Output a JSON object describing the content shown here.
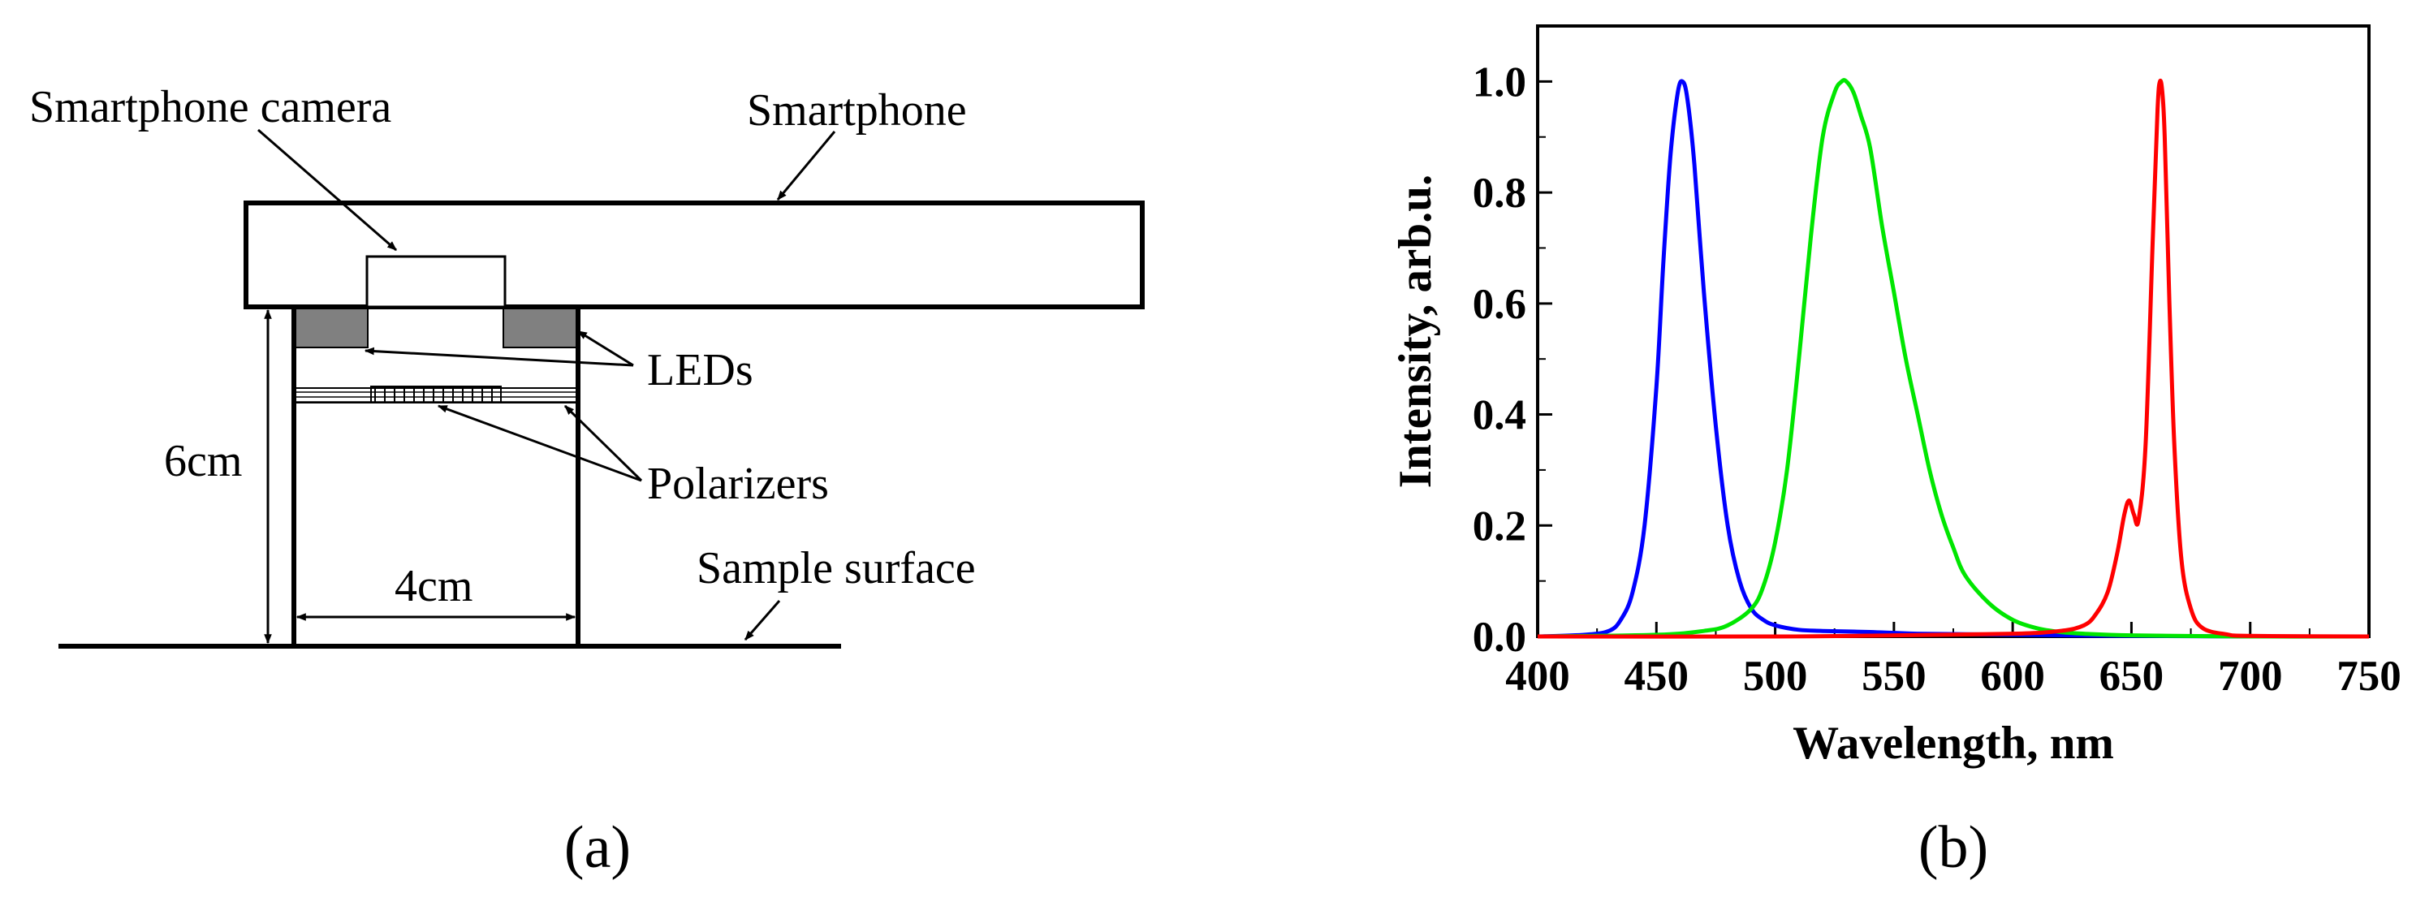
{
  "panel_a": {
    "labels": {
      "smartphone_camera": "Smartphone camera",
      "smartphone": "Smartphone",
      "leds": "LEDs",
      "polarizers": "Polarizers",
      "six_cm": "6cm",
      "four_cm": "4cm",
      "sample_surface": "Sample surface"
    },
    "caption": "(a)",
    "colors": {
      "led": "#808080",
      "line": "#000000"
    }
  },
  "panel_b": {
    "caption": "(b)"
  },
  "chart_data": {
    "type": "line",
    "xlabel": "Wavelength, nm",
    "ylabel": "Intensity, arb.u.",
    "xlim": [
      400,
      750
    ],
    "ylim": [
      0.0,
      1.1
    ],
    "xticks": [
      400,
      450,
      500,
      550,
      600,
      650,
      700,
      750
    ],
    "xtick_labels": [
      "400",
      "450",
      "500",
      "550",
      "600",
      "650",
      "700",
      "750"
    ],
    "yticks": [
      0.0,
      0.2,
      0.4,
      0.6,
      0.8,
      1.0
    ],
    "ytick_labels": [
      "0.0",
      "0.2",
      "0.4",
      "0.6",
      "0.8",
      "1.0"
    ],
    "grid": false,
    "series": [
      {
        "color": "#0000ff",
        "x": [
          400,
          420,
          430,
          435,
          440,
          445,
          450,
          453,
          456,
          459,
          461,
          463,
          466,
          470,
          475,
          480,
          485,
          490,
          495,
          500,
          510,
          520,
          540,
          560,
          600,
          650,
          700,
          750
        ],
        "y": [
          0.0,
          0.003,
          0.01,
          0.03,
          0.08,
          0.2,
          0.45,
          0.68,
          0.87,
          0.98,
          1.0,
          0.97,
          0.85,
          0.62,
          0.38,
          0.2,
          0.1,
          0.05,
          0.03,
          0.02,
          0.012,
          0.01,
          0.008,
          0.005,
          0.003,
          0.001,
          0.0,
          0.0
        ]
      },
      {
        "color": "#00e600",
        "x": [
          400,
          450,
          470,
          480,
          490,
          495,
          500,
          505,
          510,
          515,
          520,
          525,
          528,
          530,
          533,
          536,
          540,
          545,
          550,
          555,
          560,
          565,
          570,
          575,
          580,
          590,
          600,
          610,
          620,
          630,
          650,
          700,
          750
        ],
        "y": [
          0.0,
          0.003,
          0.01,
          0.02,
          0.05,
          0.09,
          0.17,
          0.3,
          0.5,
          0.72,
          0.9,
          0.98,
          1.0,
          1.0,
          0.98,
          0.94,
          0.88,
          0.74,
          0.62,
          0.5,
          0.4,
          0.3,
          0.22,
          0.16,
          0.11,
          0.06,
          0.03,
          0.015,
          0.008,
          0.005,
          0.002,
          0.0,
          0.0
        ]
      },
      {
        "color": "#ff0000",
        "x": [
          400,
          500,
          550,
          600,
          620,
          630,
          635,
          640,
          644,
          647,
          649,
          651,
          653,
          656,
          659,
          661,
          662,
          663,
          664,
          666,
          668,
          671,
          675,
          680,
          690,
          700,
          750
        ],
        "y": [
          0.0,
          0.0,
          0.002,
          0.005,
          0.01,
          0.02,
          0.04,
          0.08,
          0.15,
          0.22,
          0.245,
          0.22,
          0.21,
          0.35,
          0.72,
          0.95,
          1.0,
          0.98,
          0.9,
          0.6,
          0.35,
          0.14,
          0.05,
          0.015,
          0.004,
          0.001,
          0.0
        ]
      }
    ]
  }
}
